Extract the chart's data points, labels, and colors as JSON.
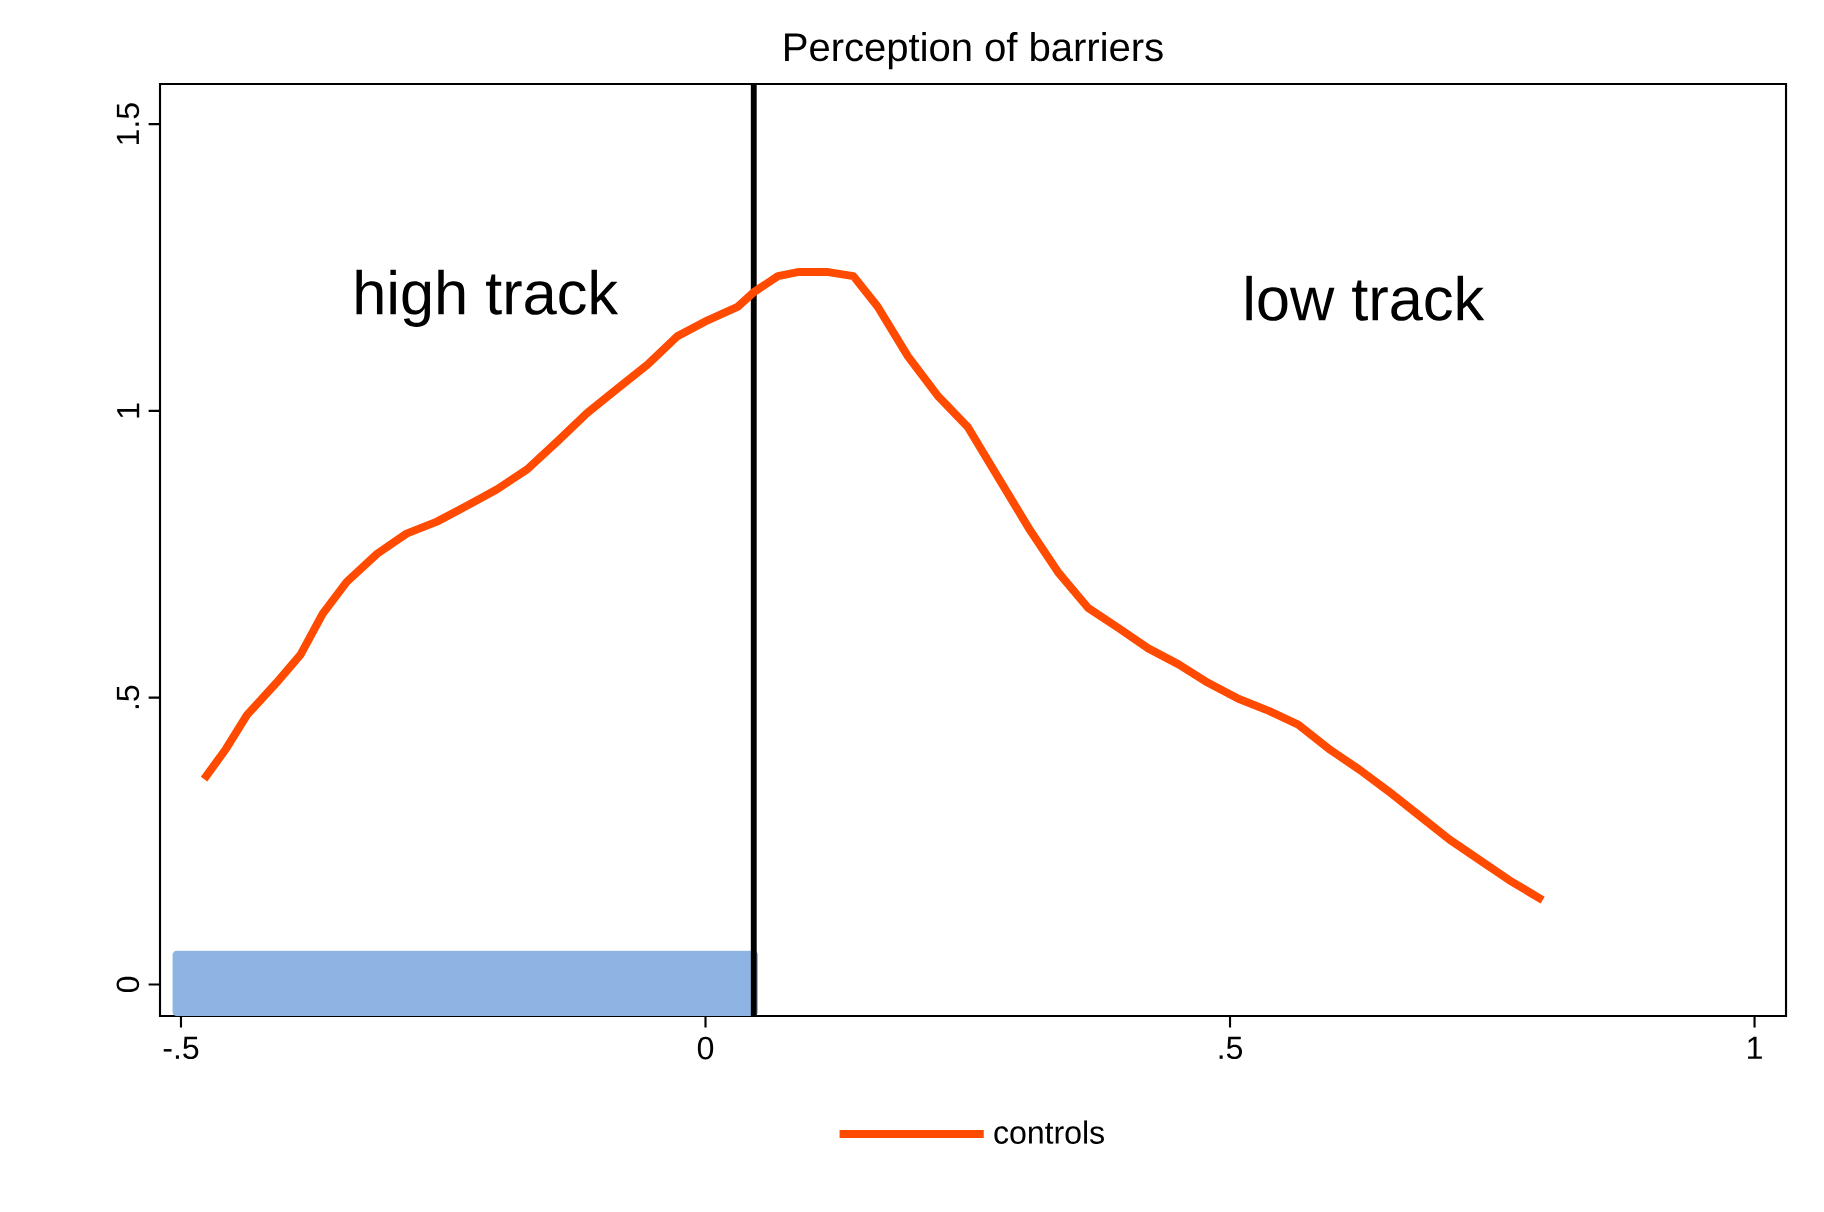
{
  "chart_data": {
    "type": "line",
    "title": "Perception of barriers",
    "xlim": [
      -0.52,
      1.03
    ],
    "ylim": [
      -0.055,
      1.57
    ],
    "xticks": [
      {
        "value": -0.5,
        "label": "-.5"
      },
      0,
      {
        "value": 0.5,
        "label": ".5"
      },
      1
    ],
    "yticks": [
      0,
      {
        "value": 0.5,
        "label": ".5"
      },
      1,
      1.5
    ],
    "grid": false,
    "legend": "bottom",
    "marker": "none",
    "line_style": "solid",
    "annotations": [
      "high track",
      "low track"
    ],
    "ref_lines": [
      {
        "axis": "x",
        "value": 0.046,
        "color": "#000000"
      }
    ],
    "bands": [
      {
        "axis": "x",
        "from": -0.508,
        "to": 0.05,
        "color": "#8db4e2"
      }
    ],
    "series": [
      {
        "name": "controls",
        "color": "#ff4a00",
        "x": [
          -0.478,
          -0.457,
          -0.437,
          -0.409,
          -0.386,
          -0.365,
          -0.342,
          -0.313,
          -0.285,
          -0.256,
          -0.227,
          -0.199,
          -0.17,
          -0.141,
          -0.113,
          -0.084,
          -0.055,
          -0.027,
          0.002,
          0.031,
          0.046,
          0.069,
          0.088,
          0.117,
          0.141,
          0.164,
          0.193,
          0.222,
          0.25,
          0.279,
          0.308,
          0.336,
          0.365,
          0.394,
          0.422,
          0.451,
          0.479,
          0.508,
          0.537,
          0.565,
          0.594,
          0.623,
          0.651,
          0.68,
          0.709,
          0.737,
          0.766,
          0.798
        ],
        "values": [
          0.358,
          0.411,
          0.47,
          0.526,
          0.575,
          0.646,
          0.702,
          0.751,
          0.786,
          0.807,
          0.835,
          0.863,
          0.898,
          0.947,
          0.996,
          1.039,
          1.081,
          1.13,
          1.158,
          1.182,
          1.207,
          1.235,
          1.242,
          1.242,
          1.235,
          1.182,
          1.095,
          1.025,
          0.972,
          0.884,
          0.796,
          0.719,
          0.656,
          0.621,
          0.586,
          0.558,
          0.526,
          0.498,
          0.477,
          0.453,
          0.411,
          0.375,
          0.337,
          0.295,
          0.253,
          0.218,
          0.182,
          0.147
        ]
      }
    ]
  }
}
